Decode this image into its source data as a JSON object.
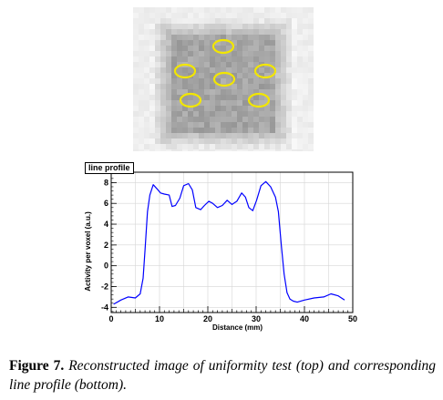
{
  "figure": {
    "label": "Figure",
    "number": "7",
    "caption": "Reconstructed image of uniformity test (top) and corresponding line profile (bottom)."
  },
  "image_panel": {
    "roi_color": "#f2e600",
    "roi_count": 6
  },
  "chart_data": {
    "type": "line",
    "title": "line profile",
    "xlabel": "Distance (mm)",
    "ylabel": "Activity per voxel (a.u.)",
    "xlim": [
      0,
      50
    ],
    "ylim": [
      -4.5,
      9
    ],
    "xticks": [
      0,
      10,
      20,
      30,
      40,
      50
    ],
    "yticks": [
      -4,
      -2,
      0,
      2,
      4,
      6,
      8
    ],
    "grid": true,
    "series": [
      {
        "color": "#0000ff",
        "points": [
          [
            0.5,
            -3.7
          ],
          [
            2,
            -3.3
          ],
          [
            3.5,
            -3.0
          ],
          [
            5,
            -3.1
          ],
          [
            6,
            -2.7
          ],
          [
            6.6,
            -1.2
          ],
          [
            7,
            1.5
          ],
          [
            7.5,
            5.2
          ],
          [
            8,
            6.8
          ],
          [
            8.7,
            7.8
          ],
          [
            9.5,
            7.4
          ],
          [
            10.2,
            7.0
          ],
          [
            11,
            6.9
          ],
          [
            12,
            6.8
          ],
          [
            12.6,
            5.7
          ],
          [
            13.3,
            5.8
          ],
          [
            14.2,
            6.5
          ],
          [
            15,
            7.7
          ],
          [
            16,
            7.9
          ],
          [
            16.8,
            7.3
          ],
          [
            17.5,
            5.6
          ],
          [
            18.5,
            5.4
          ],
          [
            19.3,
            5.8
          ],
          [
            20.2,
            6.2
          ],
          [
            21,
            6.0
          ],
          [
            22,
            5.6
          ],
          [
            23,
            5.8
          ],
          [
            24,
            6.3
          ],
          [
            25,
            5.9
          ],
          [
            26,
            6.2
          ],
          [
            27,
            7.0
          ],
          [
            27.8,
            6.6
          ],
          [
            28.5,
            5.6
          ],
          [
            29.3,
            5.3
          ],
          [
            30.1,
            6.3
          ],
          [
            31,
            7.7
          ],
          [
            32,
            8.1
          ],
          [
            33,
            7.6
          ],
          [
            34,
            6.6
          ],
          [
            34.6,
            5.2
          ],
          [
            35.2,
            2.0
          ],
          [
            35.8,
            -0.8
          ],
          [
            36.4,
            -2.6
          ],
          [
            37,
            -3.2
          ],
          [
            37.7,
            -3.4
          ],
          [
            38.5,
            -3.5
          ],
          [
            40,
            -3.3
          ],
          [
            42,
            -3.1
          ],
          [
            44,
            -3.0
          ],
          [
            45.5,
            -2.7
          ],
          [
            47,
            -2.9
          ],
          [
            48.3,
            -3.3
          ]
        ]
      }
    ]
  }
}
